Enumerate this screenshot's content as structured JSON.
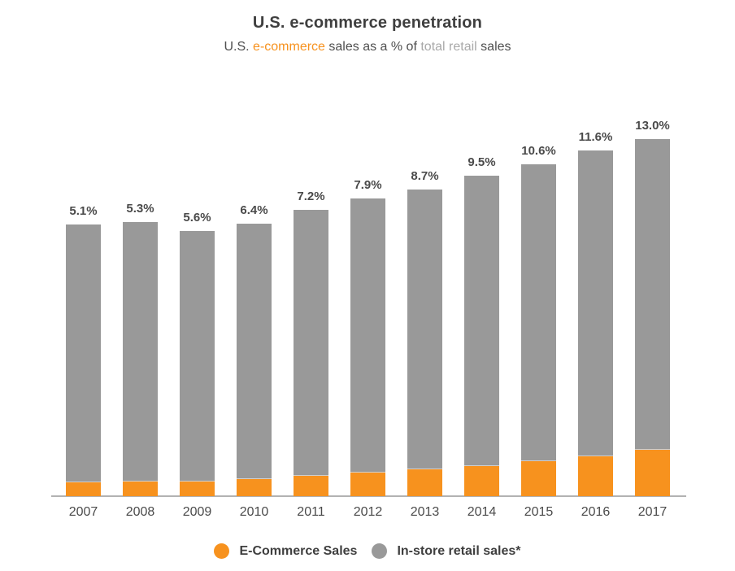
{
  "title": "U.S. e-commerce penetration",
  "subtitle": {
    "lead": "U.S. ",
    "ecommerce": "e-commerce",
    "mid": " sales as a % of ",
    "retail": "total retail",
    "tail": " sales"
  },
  "colors": {
    "ecommerce": "#f7921e",
    "instore": "#999999",
    "axis": "#b2b2b2",
    "title_text": "#3f3f3f",
    "label_text": "#4a4a4a",
    "muted_text": "#a9a9a9"
  },
  "legend": [
    {
      "label": "E-Commerce Sales",
      "color": "#f7921e"
    },
    {
      "label": "In-store retail sales*",
      "color": "#999999"
    }
  ],
  "chart_data": {
    "type": "bar",
    "stacked": true,
    "title": "U.S. e-commerce penetration",
    "subtitle": "U.S. e-commerce sales as a % of total retail sales",
    "categories": [
      "2007",
      "2008",
      "2009",
      "2010",
      "2011",
      "2012",
      "2013",
      "2014",
      "2015",
      "2016",
      "2017"
    ],
    "penetration_pct": [
      5.1,
      5.3,
      5.6,
      6.4,
      7.2,
      7.9,
      8.7,
      9.5,
      10.6,
      11.6,
      13.0
    ],
    "penetration_labels": [
      "5.1%",
      "5.3%",
      "5.6%",
      "6.4%",
      "7.2%",
      "7.9%",
      "8.7%",
      "9.5%",
      "10.6%",
      "11.6%",
      "13.0%"
    ],
    "total_retail_index_2007_100": [
      100,
      100.9,
      97.6,
      100.3,
      105.4,
      109.6,
      112.9,
      118.0,
      122.2,
      127.2,
      131.4
    ],
    "series": [
      {
        "name": "E-Commerce Sales",
        "color": "#f7921e",
        "values": [
          5.1,
          5.3,
          5.5,
          6.4,
          7.6,
          8.7,
          9.8,
          11.2,
          13.0,
          14.8,
          17.1
        ]
      },
      {
        "name": "In-store retail sales*",
        "color": "#999999",
        "values": [
          94.9,
          95.6,
          92.1,
          93.9,
          97.8,
          100.9,
          103.1,
          106.8,
          109.2,
          112.4,
          114.3
        ]
      }
    ],
    "data_labels": "penetration percentage above each bar",
    "legend_position": "bottom",
    "grid": false,
    "y_axis_visible": false
  }
}
